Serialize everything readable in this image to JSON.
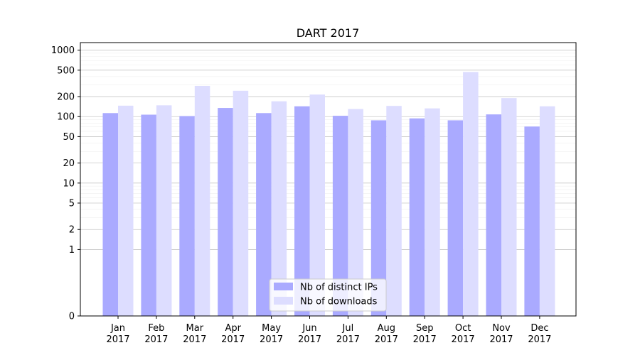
{
  "chart_data": {
    "type": "bar",
    "title": "DART 2017",
    "xlabel": "",
    "ylabel": "",
    "y_scale": "symlog",
    "ylim": [
      0,
      1300
    ],
    "y_ticks": [
      0,
      1,
      2,
      5,
      10,
      20,
      50,
      100,
      200,
      500,
      1000
    ],
    "y_tick_labels": [
      "0",
      "1",
      "2",
      "5",
      "10",
      "20",
      "50",
      "100",
      "200",
      "500",
      "1000"
    ],
    "grid": "horizontal",
    "legend_position": "bottom-center",
    "categories": [
      [
        "Jan",
        "2017"
      ],
      [
        "Feb",
        "2017"
      ],
      [
        "Mar",
        "2017"
      ],
      [
        "Apr",
        "2017"
      ],
      [
        "May",
        "2017"
      ],
      [
        "Jun",
        "2017"
      ],
      [
        "Jul",
        "2017"
      ],
      [
        "Aug",
        "2017"
      ],
      [
        "Sep",
        "2017"
      ],
      [
        "Oct",
        "2017"
      ],
      [
        "Nov",
        "2017"
      ],
      [
        "Dec",
        "2017"
      ]
    ],
    "series": [
      {
        "name": "Nb of distinct IPs",
        "color": "#aaaaff",
        "values": [
          113,
          107,
          102,
          135,
          113,
          143,
          103,
          88,
          94,
          88,
          108,
          71
        ]
      },
      {
        "name": "Nb of downloads",
        "color": "#ddddff",
        "values": [
          146,
          148,
          290,
          245,
          170,
          215,
          130,
          145,
          133,
          470,
          190,
          143
        ]
      }
    ]
  }
}
